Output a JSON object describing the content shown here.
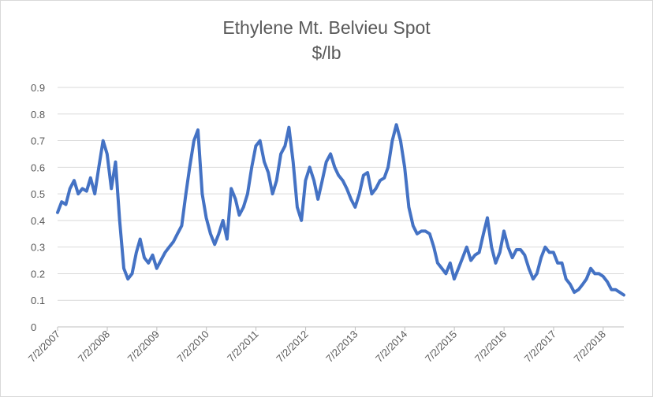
{
  "chart_data": {
    "type": "line",
    "title": "Ethylene Mt. Belvieu Spot",
    "subtitle": "$/lb",
    "xlabel": "",
    "ylabel": "",
    "ylim": [
      0,
      0.9
    ],
    "y_ticks": [
      "0",
      "0.1",
      "0.2",
      "0.3",
      "0.4",
      "0.5",
      "0.6",
      "0.7",
      "0.8",
      "0.9"
    ],
    "x_ticks": [
      "7/2/2007",
      "7/2/2008",
      "7/2/2009",
      "7/2/2010",
      "7/2/2011",
      "7/2/2012",
      "7/2/2013",
      "7/2/2014",
      "7/2/2015",
      "7/2/2016",
      "7/2/2017",
      "7/2/2018"
    ],
    "x_range": [
      "2007-07-02",
      "2018-12-01"
    ],
    "grid": true,
    "legend": "none",
    "line_color": "#4472c4",
    "series": [
      {
        "x": [
          "2007-07-02",
          "2007-08-01",
          "2007-09-01",
          "2007-10-01",
          "2007-11-01",
          "2007-12-01",
          "2008-01-01",
          "2008-02-01",
          "2008-03-01",
          "2008-04-01",
          "2008-05-01",
          "2008-06-01",
          "2008-07-01",
          "2008-08-01",
          "2008-09-01",
          "2008-10-01",
          "2008-11-01",
          "2008-12-01",
          "2009-01-01",
          "2009-02-01",
          "2009-03-01",
          "2009-04-01",
          "2009-05-01",
          "2009-06-01",
          "2009-07-01",
          "2009-08-01",
          "2009-09-01",
          "2009-10-01",
          "2009-11-01",
          "2009-12-01",
          "2010-01-01",
          "2010-02-01",
          "2010-03-01",
          "2010-04-01",
          "2010-05-01",
          "2010-06-01",
          "2010-07-01",
          "2010-08-01",
          "2010-09-01",
          "2010-10-01",
          "2010-11-01",
          "2010-12-01",
          "2011-01-01",
          "2011-02-01",
          "2011-03-01",
          "2011-04-01",
          "2011-05-01",
          "2011-06-01",
          "2011-07-01",
          "2011-08-01",
          "2011-09-01",
          "2011-10-01",
          "2011-11-01",
          "2011-12-01",
          "2012-01-01",
          "2012-02-01",
          "2012-03-01",
          "2012-04-01",
          "2012-05-01",
          "2012-06-01",
          "2012-07-01",
          "2012-08-01",
          "2012-09-01",
          "2012-10-01",
          "2012-11-01",
          "2012-12-01",
          "2013-01-01",
          "2013-02-01",
          "2013-03-01",
          "2013-04-01",
          "2013-05-01",
          "2013-06-01",
          "2013-07-01",
          "2013-08-01",
          "2013-09-01",
          "2013-10-01",
          "2013-11-01",
          "2013-12-01",
          "2014-01-01",
          "2014-02-01",
          "2014-03-01",
          "2014-04-01",
          "2014-05-01",
          "2014-06-01",
          "2014-07-01",
          "2014-08-01",
          "2014-09-01",
          "2014-10-01",
          "2014-11-01",
          "2014-12-01",
          "2015-01-01",
          "2015-02-01",
          "2015-03-01",
          "2015-04-01",
          "2015-05-01",
          "2015-06-01",
          "2015-07-01",
          "2015-08-01",
          "2015-09-01",
          "2015-10-01",
          "2015-11-01",
          "2015-12-01",
          "2016-01-01",
          "2016-02-01",
          "2016-03-01",
          "2016-04-01",
          "2016-05-01",
          "2016-06-01",
          "2016-07-01",
          "2016-08-01",
          "2016-09-01",
          "2016-10-01",
          "2016-11-01",
          "2016-12-01",
          "2017-01-01",
          "2017-02-01",
          "2017-03-01",
          "2017-04-01",
          "2017-05-01",
          "2017-06-01",
          "2017-07-01",
          "2017-08-01",
          "2017-09-01",
          "2017-10-01",
          "2017-11-01",
          "2017-12-01",
          "2018-01-01",
          "2018-02-01",
          "2018-03-01",
          "2018-04-01",
          "2018-05-01",
          "2018-06-01",
          "2018-07-01",
          "2018-08-01",
          "2018-09-01",
          "2018-10-01",
          "2018-11-01",
          "2018-12-01"
        ],
        "values": [
          0.43,
          0.47,
          0.46,
          0.52,
          0.55,
          0.5,
          0.52,
          0.51,
          0.56,
          0.5,
          0.6,
          0.7,
          0.65,
          0.52,
          0.62,
          0.4,
          0.22,
          0.18,
          0.2,
          0.28,
          0.33,
          0.26,
          0.24,
          0.27,
          0.22,
          0.25,
          0.28,
          0.3,
          0.32,
          0.35,
          0.38,
          0.5,
          0.6,
          0.7,
          0.74,
          0.5,
          0.41,
          0.35,
          0.31,
          0.35,
          0.4,
          0.33,
          0.52,
          0.48,
          0.42,
          0.45,
          0.5,
          0.6,
          0.68,
          0.7,
          0.62,
          0.58,
          0.5,
          0.55,
          0.65,
          0.68,
          0.75,
          0.62,
          0.45,
          0.4,
          0.55,
          0.6,
          0.55,
          0.48,
          0.55,
          0.62,
          0.65,
          0.6,
          0.57,
          0.55,
          0.52,
          0.48,
          0.45,
          0.5,
          0.57,
          0.58,
          0.5,
          0.52,
          0.55,
          0.56,
          0.6,
          0.7,
          0.76,
          0.7,
          0.6,
          0.45,
          0.38,
          0.35,
          0.36,
          0.36,
          0.35,
          0.3,
          0.24,
          0.22,
          0.2,
          0.24,
          0.18,
          0.22,
          0.26,
          0.3,
          0.25,
          0.27,
          0.28,
          0.35,
          0.41,
          0.3,
          0.24,
          0.28,
          0.36,
          0.3,
          0.26,
          0.29,
          0.29,
          0.27,
          0.22,
          0.18,
          0.2,
          0.26,
          0.3,
          0.28,
          0.28,
          0.24,
          0.24,
          0.18,
          0.16,
          0.13,
          0.14,
          0.16,
          0.18,
          0.22,
          0.2,
          0.2,
          0.19,
          0.17,
          0.14,
          0.14,
          0.13,
          0.12
        ]
      }
    ]
  }
}
